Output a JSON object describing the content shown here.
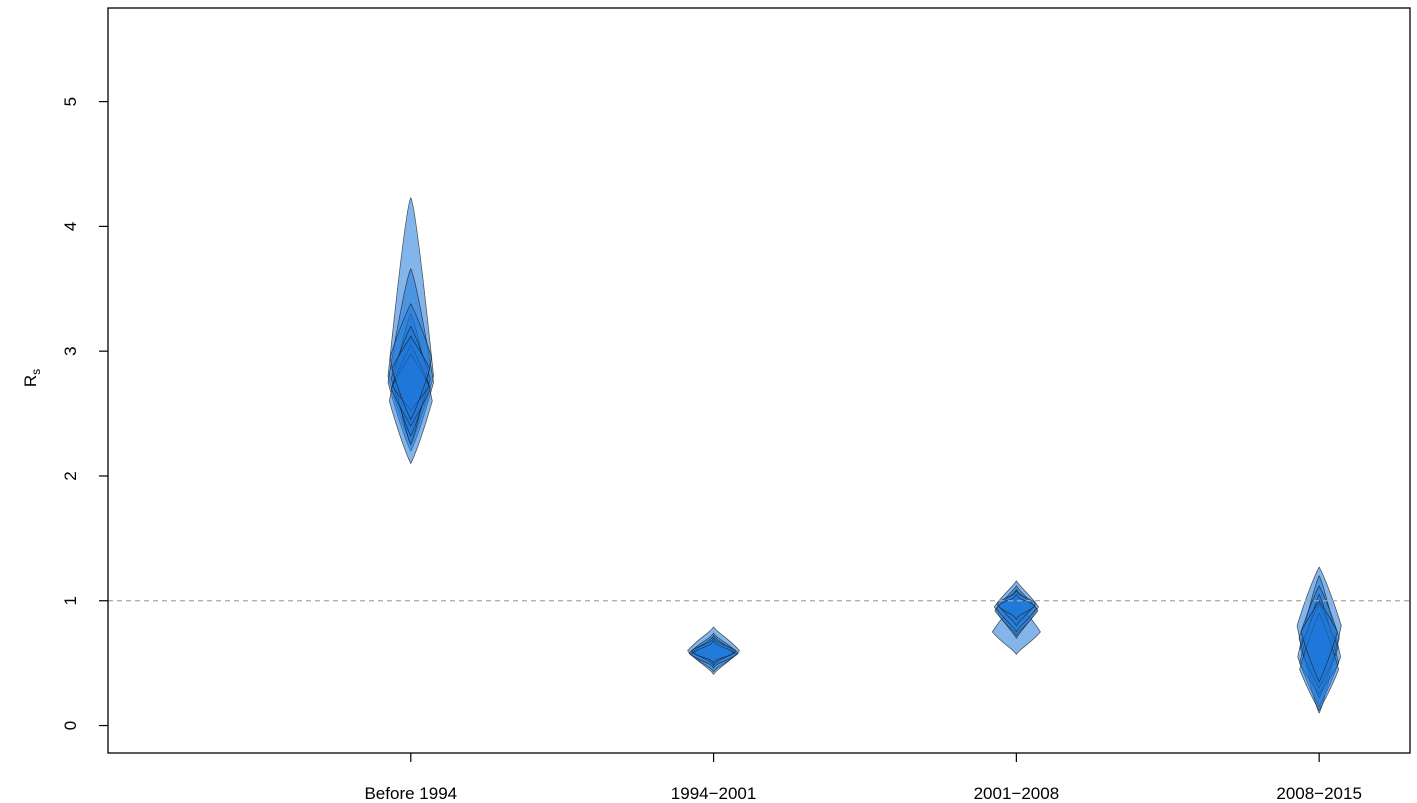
{
  "chart_data": {
    "type": "violin",
    "title": "",
    "xlabel": "",
    "ylabel": "R",
    "ylabel_subscript": "s",
    "categories": [
      "Before 1994",
      "1994−2001",
      "2001−2008",
      "2008−2015"
    ],
    "y_ticks": [
      "0",
      "1",
      "2",
      "3",
      "4",
      "5"
    ],
    "ylim": [
      -0.22,
      5.75
    ],
    "reference_line": {
      "y": 1,
      "style": "dashed",
      "color": "#a6a6a6"
    },
    "grid": false,
    "colors": {
      "fill": "#1f78d8",
      "outline": "#1a1a1a",
      "axis": "#000000"
    },
    "violin_groups": [
      {
        "category": "Before 1994",
        "violins": [
          {
            "min": 2.26,
            "max": 4.23,
            "center": 2.8,
            "halfwidth": 0.035
          },
          {
            "min": 2.2,
            "max": 3.66,
            "center": 2.75,
            "halfwidth": 0.035
          },
          {
            "min": 2.1,
            "max": 3.3,
            "center": 2.6,
            "halfwidth": 0.033
          },
          {
            "min": 2.25,
            "max": 3.38,
            "center": 2.95,
            "halfwidth": 0.032
          },
          {
            "min": 2.32,
            "max": 3.2,
            "center": 2.78,
            "halfwidth": 0.03
          },
          {
            "min": 2.4,
            "max": 3.05,
            "center": 2.7,
            "halfwidth": 0.03
          },
          {
            "min": 2.52,
            "max": 2.98,
            "center": 2.72,
            "halfwidth": 0.028
          },
          {
            "min": 2.45,
            "max": 3.12,
            "center": 2.86,
            "halfwidth": 0.029
          }
        ]
      },
      {
        "category": "1994−2001",
        "violins": [
          {
            "min": 0.41,
            "max": 0.79,
            "center": 0.6,
            "halfwidth": 0.04
          },
          {
            "min": 0.43,
            "max": 0.74,
            "center": 0.58,
            "halfwidth": 0.038
          },
          {
            "min": 0.46,
            "max": 0.72,
            "center": 0.57,
            "halfwidth": 0.036
          },
          {
            "min": 0.48,
            "max": 0.7,
            "center": 0.6,
            "halfwidth": 0.034
          },
          {
            "min": 0.5,
            "max": 0.68,
            "center": 0.58,
            "halfwidth": 0.032
          }
        ]
      },
      {
        "category": "2001−2008",
        "violins": [
          {
            "min": 0.57,
            "max": 1.0,
            "center": 0.75,
            "halfwidth": 0.037
          },
          {
            "min": 0.7,
            "max": 1.16,
            "center": 0.95,
            "halfwidth": 0.034
          },
          {
            "min": 0.72,
            "max": 1.12,
            "center": 0.92,
            "halfwidth": 0.033
          },
          {
            "min": 0.75,
            "max": 1.09,
            "center": 0.94,
            "halfwidth": 0.031
          },
          {
            "min": 0.8,
            "max": 1.08,
            "center": 0.98,
            "halfwidth": 0.03
          },
          {
            "min": 0.85,
            "max": 1.05,
            "center": 0.96,
            "halfwidth": 0.029
          }
        ]
      },
      {
        "category": "2008−2015",
        "violins": [
          {
            "min": 0.1,
            "max": 1.27,
            "center": 0.8,
            "halfwidth": 0.034
          },
          {
            "min": 0.15,
            "max": 1.2,
            "center": 0.55,
            "halfwidth": 0.033
          },
          {
            "min": 0.22,
            "max": 1.12,
            "center": 0.7,
            "halfwidth": 0.031
          },
          {
            "min": 0.25,
            "max": 1.05,
            "center": 0.5,
            "halfwidth": 0.03
          },
          {
            "min": 0.3,
            "max": 0.98,
            "center": 0.62,
            "halfwidth": 0.029
          },
          {
            "min": 0.12,
            "max": 0.9,
            "center": 0.45,
            "halfwidth": 0.03
          },
          {
            "min": 0.35,
            "max": 1.0,
            "center": 0.75,
            "halfwidth": 0.028
          }
        ]
      }
    ]
  }
}
